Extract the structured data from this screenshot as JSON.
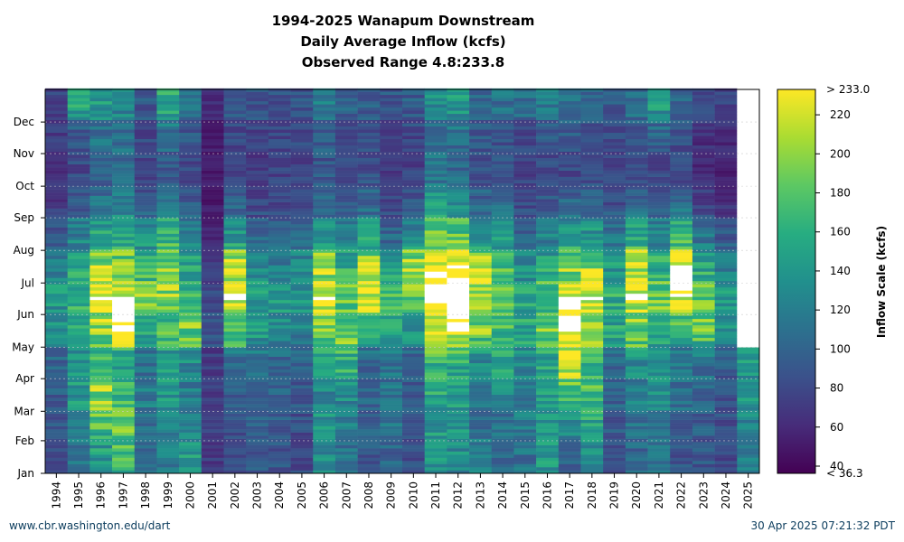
{
  "title_lines": [
    "1994-2025 Wanapum Downstream",
    "Daily Average Inflow (kcfs)",
    "Observed Range 4.8:233.8"
  ],
  "footer": {
    "left": "www.cbr.washington.edu/dart",
    "right": "30 Apr 2025 07:21:32 PDT"
  },
  "chart_data": {
    "type": "heatmap",
    "title": "1994-2025 Wanapum Downstream Daily Average Inflow (kcfs) Observed Range 4.8:233.8",
    "x_categories": [
      "1994",
      "1995",
      "1996",
      "1997",
      "1998",
      "1999",
      "2000",
      "2001",
      "2002",
      "2003",
      "2004",
      "2005",
      "2006",
      "2007",
      "2008",
      "2009",
      "2010",
      "2011",
      "2012",
      "2013",
      "2014",
      "2015",
      "2016",
      "2017",
      "2018",
      "2019",
      "2020",
      "2021",
      "2022",
      "2023",
      "2024",
      "2025"
    ],
    "y_tick_labels": [
      "Jan",
      "Feb",
      "Mar",
      "Apr",
      "May",
      "Jun",
      "Jul",
      "Aug",
      "Sep",
      "Oct",
      "Nov",
      "Dec"
    ],
    "colorbar": {
      "label": "Inflow Scale (kcfs)",
      "ticks": [
        40,
        60,
        80,
        100,
        120,
        140,
        160,
        180,
        200,
        220
      ],
      "max_label": "> 233.0",
      "min_label": "< 36.3",
      "range": [
        36.3,
        233.0
      ],
      "colormap": "viridis"
    },
    "value_range": [
      4.8,
      233.8
    ],
    "grid": true,
    "monthly_values_kcfs": {
      "1994": [
        85,
        90,
        95,
        100,
        130,
        140,
        120,
        90,
        70,
        65,
        70,
        75
      ],
      "1995": [
        110,
        130,
        140,
        135,
        150,
        160,
        150,
        120,
        90,
        80,
        90,
        150
      ],
      "1996": [
        140,
        170,
        200,
        170,
        200,
        234,
        200,
        150,
        110,
        95,
        110,
        140
      ],
      "1997": [
        170,
        180,
        170,
        150,
        234,
        234,
        190,
        160,
        120,
        100,
        110,
        130
      ],
      "1998": [
        100,
        110,
        120,
        110,
        150,
        190,
        170,
        130,
        90,
        80,
        80,
        90
      ],
      "1999": [
        120,
        130,
        140,
        140,
        170,
        200,
        200,
        160,
        110,
        90,
        110,
        150
      ],
      "2000": [
        140,
        130,
        120,
        130,
        190,
        170,
        150,
        120,
        90,
        80,
        90,
        110
      ],
      "2001": [
        70,
        75,
        75,
        70,
        90,
        80,
        70,
        55,
        50,
        50,
        55,
        60
      ],
      "2002": [
        80,
        90,
        95,
        100,
        180,
        234,
        210,
        140,
        95,
        80,
        80,
        90
      ],
      "2003": [
        90,
        100,
        100,
        110,
        140,
        150,
        130,
        100,
        80,
        70,
        75,
        90
      ],
      "2004": [
        90,
        95,
        100,
        100,
        130,
        140,
        120,
        100,
        80,
        75,
        80,
        85
      ],
      "2005": [
        80,
        85,
        90,
        95,
        120,
        140,
        130,
        100,
        80,
        75,
        80,
        90
      ],
      "2006": [
        130,
        140,
        130,
        140,
        190,
        234,
        200,
        140,
        100,
        90,
        95,
        120
      ],
      "2007": [
        110,
        120,
        130,
        160,
        190,
        190,
        160,
        120,
        90,
        80,
        85,
        100
      ],
      "2008": [
        90,
        95,
        100,
        100,
        160,
        234,
        200,
        140,
        100,
        85,
        85,
        95
      ],
      "2009": [
        100,
        110,
        110,
        110,
        150,
        170,
        140,
        100,
        80,
        70,
        75,
        90
      ],
      "2010": [
        85,
        90,
        90,
        95,
        140,
        180,
        200,
        130,
        90,
        75,
        80,
        95
      ],
      "2011": [
        140,
        140,
        150,
        170,
        220,
        234,
        234,
        190,
        140,
        110,
        110,
        130
      ],
      "2012": [
        130,
        140,
        140,
        160,
        234,
        234,
        234,
        180,
        130,
        100,
        110,
        140
      ],
      "2013": [
        120,
        110,
        120,
        130,
        190,
        220,
        200,
        140,
        100,
        85,
        90,
        100
      ],
      "2014": [
        100,
        110,
        130,
        150,
        170,
        190,
        170,
        140,
        100,
        85,
        90,
        110
      ],
      "2015": [
        110,
        120,
        120,
        130,
        150,
        150,
        130,
        100,
        80,
        75,
        80,
        110
      ],
      "2016": [
        140,
        140,
        140,
        150,
        190,
        180,
        150,
        120,
        90,
        80,
        90,
        120
      ],
      "2017": [
        100,
        130,
        170,
        210,
        234,
        234,
        190,
        140,
        100,
        80,
        90,
        110
      ],
      "2018": [
        130,
        150,
        170,
        160,
        200,
        234,
        200,
        140,
        95,
        80,
        85,
        100
      ],
      "2019": [
        90,
        90,
        100,
        100,
        150,
        160,
        140,
        110,
        85,
        75,
        80,
        90
      ],
      "2020": [
        100,
        110,
        120,
        130,
        190,
        234,
        220,
        150,
        100,
        85,
        90,
        110
      ],
      "2021": [
        110,
        120,
        130,
        130,
        160,
        190,
        160,
        120,
        90,
        80,
        100,
        140
      ],
      "2022": [
        90,
        100,
        110,
        110,
        160,
        234,
        234,
        170,
        100,
        80,
        85,
        100
      ],
      "2023": [
        90,
        95,
        100,
        110,
        180,
        190,
        150,
        110,
        75,
        60,
        65,
        80
      ],
      "2024": [
        80,
        85,
        90,
        95,
        130,
        150,
        120,
        90,
        65,
        55,
        60,
        75
      ],
      "2025": [
        120,
        130,
        140,
        140,
        null,
        null,
        null,
        null,
        null,
        null,
        null,
        null
      ]
    }
  }
}
